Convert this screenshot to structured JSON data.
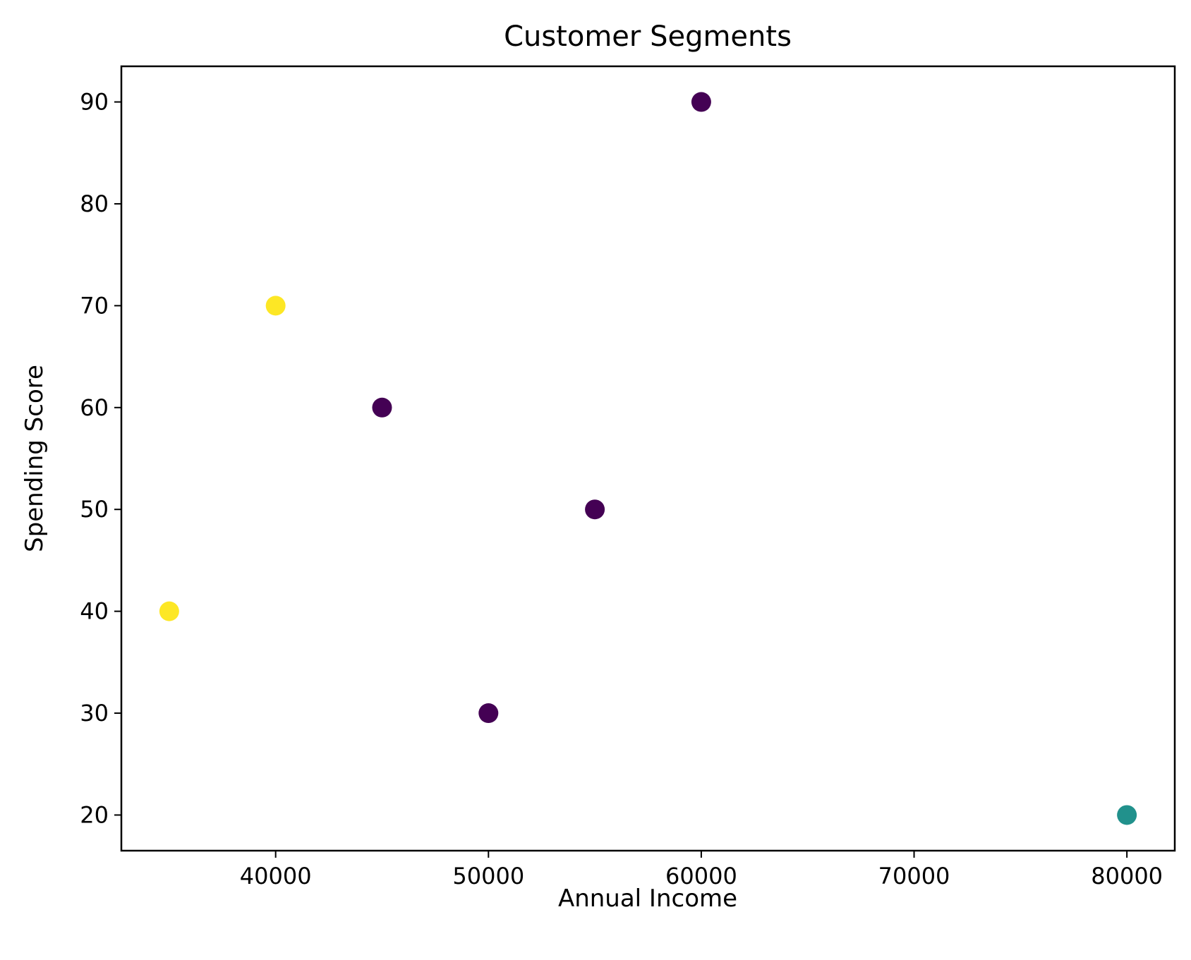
{
  "chart_data": {
    "type": "scatter",
    "title": "Customer Segments",
    "xlabel": "Annual Income",
    "ylabel": "Spending Score",
    "xlim": [
      32750,
      82250
    ],
    "ylim": [
      16.5,
      93.5
    ],
    "xticks": [
      40000,
      50000,
      60000,
      70000,
      80000
    ],
    "yticks": [
      20,
      30,
      40,
      50,
      60,
      70,
      80,
      90
    ],
    "grid": false,
    "legend": "none",
    "colors": {
      "purple": "#440154",
      "teal": "#21918c",
      "yellow": "#fde725"
    },
    "points": [
      {
        "x": 35000,
        "y": 40,
        "color": "#fde725"
      },
      {
        "x": 40000,
        "y": 70,
        "color": "#fde725"
      },
      {
        "x": 45000,
        "y": 60,
        "color": "#440154"
      },
      {
        "x": 50000,
        "y": 30,
        "color": "#440154"
      },
      {
        "x": 55000,
        "y": 50,
        "color": "#440154"
      },
      {
        "x": 60000,
        "y": 90,
        "color": "#440154"
      },
      {
        "x": 80000,
        "y": 20,
        "color": "#21918c"
      }
    ]
  }
}
